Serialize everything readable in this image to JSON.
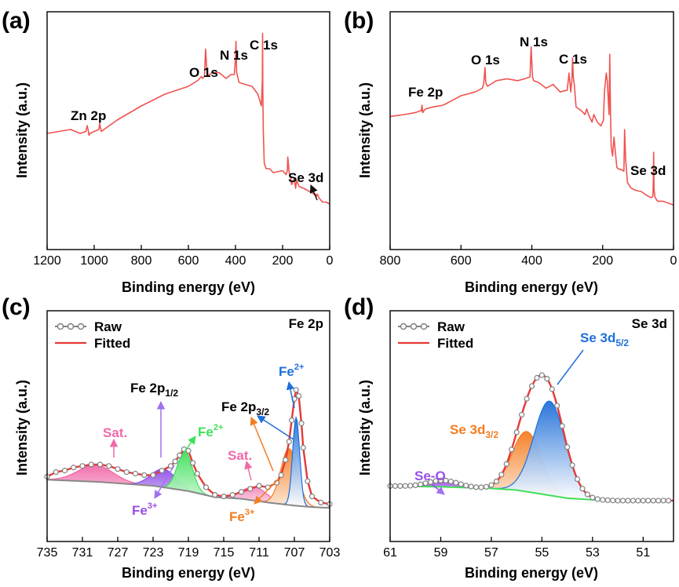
{
  "chart_data": [
    {
      "id": "a",
      "type": "line",
      "panel_label": "(a)",
      "xlabel": "Binding energy (eV)",
      "ylabel": "Intensity (a.u.)",
      "xlim": [
        1200,
        0
      ],
      "x_reversed": true,
      "ylim": [
        0,
        100
      ],
      "xticks": [
        1200,
        1000,
        800,
        600,
        400,
        200,
        0
      ],
      "series": [
        {
          "color": "#ef5350",
          "x": [
            1200,
            1150,
            1100,
            1060,
            1035,
            1030,
            1026,
            1022,
            1018,
            1000,
            980,
            977,
            970,
            900,
            800,
            700,
            600,
            560,
            545,
            540,
            532,
            527,
            520,
            500,
            470,
            440,
            420,
            405,
            400,
            398,
            395,
            385,
            360,
            330,
            305,
            295,
            290,
            286,
            285,
            284,
            282,
            278,
            270,
            255,
            240,
            200,
            185,
            180,
            178,
            172,
            165,
            162,
            160,
            150,
            145,
            140,
            130,
            110,
            80,
            65,
            58,
            56,
            52,
            45,
            30,
            15,
            0
          ],
          "y": [
            48,
            49,
            50,
            48,
            49,
            52,
            50,
            47,
            48,
            49,
            50,
            53,
            49,
            55,
            62,
            68,
            72,
            75,
            77,
            76,
            77,
            91,
            77,
            79,
            79,
            76,
            78,
            78,
            86,
            95,
            79,
            74,
            73,
            72,
            68,
            64,
            62,
            75,
            99,
            70,
            50,
            33,
            30,
            30,
            28,
            29,
            27,
            29,
            36,
            28,
            25,
            22,
            22,
            25,
            20,
            24,
            21,
            20,
            18,
            17,
            17,
            16,
            17,
            15,
            13,
            13,
            12
          ]
        }
      ],
      "annotations": [
        "Zn 2p",
        "O 1s",
        "N 1s",
        "C 1s",
        "Se 3d"
      ]
    },
    {
      "id": "b",
      "type": "line",
      "panel_label": "(b)",
      "xlabel": "Binding energy (eV)",
      "ylabel": "Intensity (a.u.)",
      "xlim": [
        800,
        0
      ],
      "x_reversed": true,
      "ylim": [
        0,
        100
      ],
      "xticks": [
        800,
        600,
        400,
        200,
        0
      ],
      "series": [
        {
          "color": "#ef5350",
          "x": [
            800,
            760,
            730,
            715,
            712,
            710,
            708,
            705,
            700,
            680,
            650,
            600,
            560,
            540,
            536,
            532,
            530,
            525,
            500,
            470,
            440,
            420,
            405,
            402,
            398,
            395,
            380,
            360,
            340,
            320,
            300,
            295,
            290,
            287,
            285,
            283,
            280,
            275,
            260,
            250,
            245,
            240,
            230,
            225,
            215,
            205,
            198,
            195,
            190,
            187,
            182,
            180,
            178,
            176,
            172,
            168,
            165,
            160,
            155,
            150,
            140,
            138,
            135,
            130,
            120,
            110,
            90,
            75,
            65,
            60,
            58,
            57,
            56,
            55,
            52,
            45,
            30,
            15,
            0
          ],
          "y": [
            59,
            60,
            61,
            62,
            62,
            65,
            61,
            62,
            63,
            64,
            65,
            70,
            72,
            74,
            76,
            85,
            77,
            75,
            78,
            79,
            78,
            79,
            80,
            96,
            80,
            78,
            77,
            74,
            76,
            72,
            73,
            82,
            72,
            78,
            90,
            80,
            76,
            64,
            62,
            60,
            63,
            60,
            56,
            60,
            56,
            54,
            57,
            72,
            82,
            78,
            60,
            92,
            62,
            43,
            38,
            48,
            42,
            32,
            31,
            31,
            30,
            52,
            36,
            24,
            21,
            20,
            19,
            17,
            16,
            16,
            17,
            25,
            40,
            20,
            16,
            14,
            14,
            13,
            12
          ]
        }
      ],
      "annotations": [
        "Fe 2p",
        "O 1s",
        "N 1s",
        "C 1s",
        "Se 3d"
      ]
    },
    {
      "id": "c",
      "type": "line",
      "panel_label": "(c)",
      "corner_label": "Fe 2p",
      "xlabel": "Binding energy (eV)",
      "ylabel": "Intensity (a.u.)",
      "xlim": [
        735,
        703
      ],
      "x_reversed": true,
      "ylim": [
        0,
        100
      ],
      "xticks": [
        735,
        731,
        727,
        723,
        719,
        715,
        711,
        707,
        703
      ],
      "legend": {
        "position": "top-left",
        "entries": [
          "Raw",
          "Fitted"
        ]
      },
      "baseline": {
        "x": [
          735,
          729,
          723,
          719,
          716,
          713,
          710,
          707,
          705,
          703
        ],
        "y": [
          21,
          19.5,
          17,
          13.5,
          9.5,
          8.5,
          6,
          4,
          3,
          2.5
        ]
      },
      "series": [
        {
          "name": "Raw",
          "color": "#808080",
          "marker": "open-circle",
          "x": [
            735,
            734,
            733,
            732,
            731,
            730,
            729,
            728,
            727,
            726,
            725,
            724,
            723,
            722,
            721,
            720.5,
            720,
            719.5,
            719,
            718.5,
            718,
            717,
            716,
            715,
            714,
            713,
            712,
            711,
            710,
            709,
            708.5,
            708,
            707.6,
            707.3,
            707,
            706.8,
            706.5,
            706.2,
            706,
            705.5,
            705,
            704,
            703
          ],
          "y": [
            23,
            26,
            27,
            29,
            30,
            31,
            31,
            30,
            28,
            26,
            25,
            24,
            24,
            27,
            30,
            33,
            37,
            41,
            40,
            32,
            25,
            16,
            11,
            10,
            11,
            13,
            15,
            17,
            16,
            19,
            24,
            34,
            46,
            60,
            74,
            80,
            76,
            58,
            42,
            20,
            10,
            6,
            5
          ]
        },
        {
          "name": "Fitted",
          "color": "#e53935",
          "x": [
            735,
            734,
            733,
            732,
            731,
            730,
            729,
            728,
            727,
            726,
            725,
            724,
            723,
            722,
            721,
            720.5,
            720,
            719.5,
            719,
            718.5,
            718,
            717,
            716,
            715,
            714,
            713,
            712,
            711,
            710,
            709,
            708.5,
            708,
            707.6,
            707.3,
            707,
            706.8,
            706.5,
            706.2,
            706,
            705.5,
            705,
            704,
            703
          ],
          "y": [
            23,
            26,
            27,
            29,
            30,
            31,
            31,
            30,
            28,
            26,
            25,
            24,
            24,
            27,
            30,
            33,
            37,
            41,
            40,
            32,
            25,
            16,
            11,
            10,
            11,
            13,
            15,
            17,
            16,
            19,
            24,
            34,
            46,
            60,
            74,
            80,
            76,
            58,
            42,
            20,
            10,
            6,
            5
          ]
        }
      ],
      "peaks": [
        {
          "color": "#f06aa8",
          "center": 729.5,
          "height": 11,
          "width": 2.0
        },
        {
          "color": "#8e4ee8",
          "center": 721.8,
          "height": 12,
          "width": 1.4
        },
        {
          "color": "#3ee05a",
          "center": 719.4,
          "height": 26,
          "width": 0.85
        },
        {
          "color": "#f06aa8",
          "center": 711.5,
          "height": 9,
          "width": 1.4
        },
        {
          "color": "#f47c20",
          "center": 707.6,
          "height": 37,
          "width": 0.95
        },
        {
          "color": "#1e6fd9",
          "center": 706.8,
          "height": 58,
          "width": 0.4
        }
      ],
      "annotations": [
        "Fe 2p1/2",
        "Fe 2p3/2",
        "Fe2+",
        "Fe2+",
        "Fe3+",
        "Fe3+",
        "Sat.",
        "Sat."
      ]
    },
    {
      "id": "d",
      "type": "line",
      "panel_label": "(d)",
      "corner_label": "Se 3d",
      "xlabel": "Binding energy (eV)",
      "ylabel": "Intensity (a.u.)",
      "xlim": [
        61,
        49.8
      ],
      "x_reversed": true,
      "ylim": [
        0,
        100
      ],
      "xticks": [
        61,
        59,
        57,
        55,
        53,
        51
      ],
      "legend": {
        "position": "top-left",
        "entries": [
          "Raw",
          "Fitted"
        ]
      },
      "baseline": {
        "x": [
          61,
          59,
          57,
          56,
          55,
          54,
          53,
          52,
          51,
          49.8
        ],
        "y": [
          10,
          9.5,
          8.5,
          7.5,
          5,
          2.5,
          1.5,
          1,
          1,
          1
        ]
      },
      "peaks": [
        {
          "color": "#9b4ee8",
          "center": 58.9,
          "height": 4,
          "width": 0.6
        },
        {
          "color": "#f47c20",
          "center": 55.6,
          "height": 37,
          "width": 0.58
        },
        {
          "color": "#1e6fd9",
          "center": 54.7,
          "height": 58,
          "width": 0.62
        }
      ],
      "series": [
        {
          "name": "Raw",
          "color": "#808080",
          "marker": "open-circle"
        },
        {
          "name": "Fitted",
          "color": "#e53935"
        }
      ],
      "annotations": [
        "Se-O",
        "Se 3d3/2",
        "Se 3d5/2"
      ]
    }
  ],
  "labels": {
    "a": {
      "panel": "(a)",
      "zn": "Zn 2p",
      "o": "O 1s",
      "n": "N 1s",
      "c": "C 1s",
      "se": "Se 3d"
    },
    "b": {
      "panel": "(b)",
      "fe": "Fe 2p",
      "o": "O 1s",
      "n": "N 1s",
      "c": "C 1s",
      "se": "Se 3d"
    },
    "c": {
      "panel": "(c)",
      "corner": "Fe 2p",
      "raw": "Raw",
      "fitted": "Fitted",
      "fe2p12": "Fe 2p",
      "fe2p12_sub": "1/2",
      "fe2p32": "Fe 2p",
      "fe2p32_sub": "3/2",
      "fe2plus_a": "Fe",
      "fe2plus_a_sup": "2+",
      "fe2plus_b": "Fe",
      "fe2plus_b_sup": "2+",
      "fe3plus_a": "Fe",
      "fe3plus_a_sup": "3+",
      "fe3plus_b": "Fe",
      "fe3plus_b_sup": "3+",
      "sat_a": "Sat.",
      "sat_b": "Sat."
    },
    "d": {
      "panel": "(d)",
      "corner": "Se 3d",
      "raw": "Raw",
      "fitted": "Fitted",
      "seo": "Se-O",
      "se32": "Se 3d",
      "se32_sub": "3/2",
      "se52": "Se 3d",
      "se52_sub": "5/2"
    }
  },
  "colors": {
    "line": "#ef5350",
    "raw": "#808080",
    "fitted": "#e53935",
    "pink": "#f06aa8",
    "purple": "#8e4ee8",
    "green": "#3ee05a",
    "orange": "#f47c20",
    "blue": "#1e6fd9"
  }
}
